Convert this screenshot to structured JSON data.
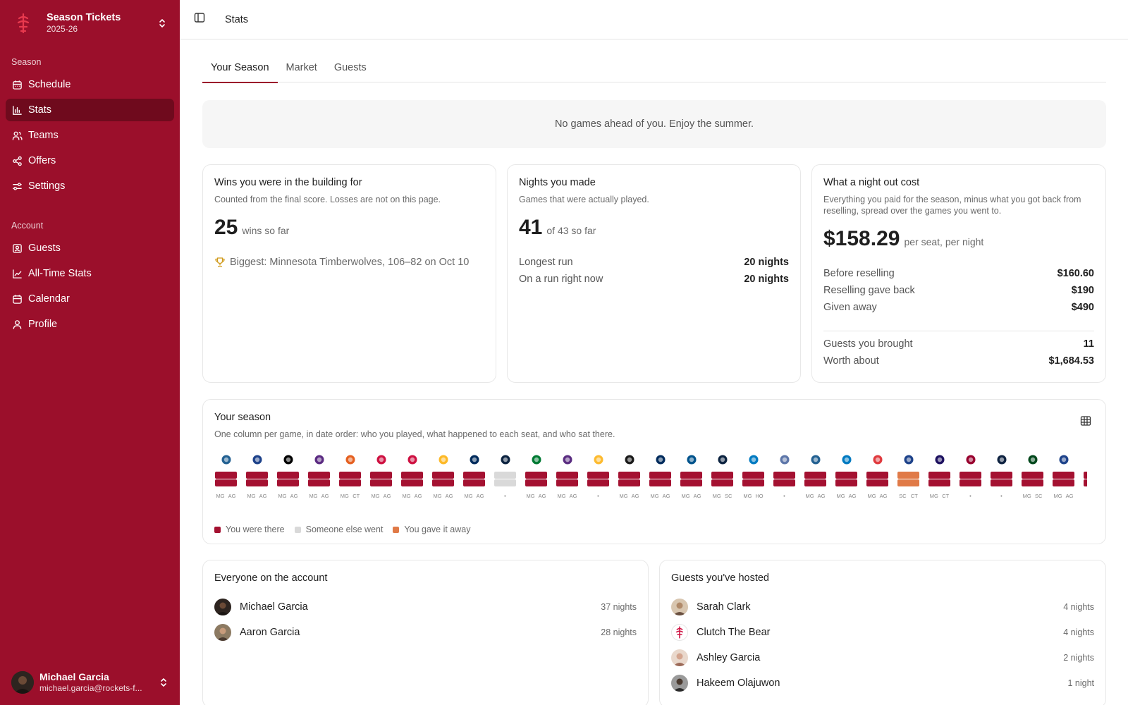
{
  "brand": {
    "title": "Season Tickets",
    "subtitle": "2025-26",
    "logo_icon": "rockets-logo-icon"
  },
  "sidebar": {
    "season_heading": "Season",
    "season_items": [
      {
        "label": "Schedule",
        "icon": "calendar-grid-icon"
      },
      {
        "label": "Stats",
        "icon": "bar-chart-icon",
        "active": true
      },
      {
        "label": "Teams",
        "icon": "users-icon"
      },
      {
        "label": "Offers",
        "icon": "share-icon"
      },
      {
        "label": "Settings",
        "icon": "sliders-icon"
      }
    ],
    "account_heading": "Account",
    "account_items": [
      {
        "label": "Guests",
        "icon": "contact-icon"
      },
      {
        "label": "All-Time Stats",
        "icon": "line-chart-icon"
      },
      {
        "label": "Calendar",
        "icon": "calendar-icon"
      },
      {
        "label": "Profile",
        "icon": "user-icon"
      }
    ]
  },
  "user": {
    "name": "Michael Garcia",
    "email": "michael.garcia@rockets-f..."
  },
  "topbar": {
    "breadcrumb": "Stats"
  },
  "tabs": [
    "Your Season",
    "Market",
    "Guests"
  ],
  "notice": "No games ahead of you. Enjoy the summer.",
  "wins_card": {
    "title": "Wins you were in the building for",
    "subtitle": "Counted from the final score. Losses are not on this page.",
    "value": "25",
    "value_suffix": "wins so far",
    "biggest": "Biggest: Minnesota Timberwolves, 106–82 on Oct 10"
  },
  "nights_card": {
    "title": "Nights you made",
    "subtitle": "Games that were actually played.",
    "value": "41",
    "value_suffix": "of 43 so far",
    "rows": [
      {
        "label": "Longest run",
        "value": "20 nights"
      },
      {
        "label": "On a run right now",
        "value": "20 nights"
      }
    ]
  },
  "cost_card": {
    "title": "What a night out cost",
    "subtitle": "Everything you paid for the season, minus what you got back from reselling, spread over the games you went to.",
    "value": "$158.29",
    "value_suffix": "per seat, per night",
    "rows": [
      {
        "label": "Before reselling",
        "value": "$160.60"
      },
      {
        "label": "Reselling gave back",
        "value": "$190"
      },
      {
        "label": "Given away",
        "value": "$490"
      }
    ],
    "rows2": [
      {
        "label": "Guests you brought",
        "value": "11"
      },
      {
        "label": "Worth about",
        "value": "$1,684.53"
      }
    ]
  },
  "season_strip": {
    "title": "Your season",
    "subtitle": "One column per game, in date order: who you played, what happened to each seat, and who sat there.",
    "legend": [
      {
        "label": "You were there",
        "color": "#a41131"
      },
      {
        "label": "Someone else went",
        "color": "#d9d9d9"
      },
      {
        "label": "You gave it away",
        "color": "#e07a47"
      }
    ],
    "games": [
      {
        "team_icon": "timberwolves-icon",
        "logo_color": "#236192",
        "seat1": "there",
        "seat2": "there",
        "seat1_initials": "MG",
        "seat2_initials": "AG"
      },
      {
        "team_icon": "clippers-icon",
        "logo_color": "#1d428a",
        "seat1": "there",
        "seat2": "there",
        "seat1_initials": "MG",
        "seat2_initials": "AG"
      },
      {
        "team_icon": "nets-icon",
        "logo_color": "#000000",
        "seat1": "there",
        "seat2": "there",
        "seat1_initials": "MG",
        "seat2_initials": "AG"
      },
      {
        "team_icon": "jazz-icon",
        "logo_color": "#5b2b82",
        "seat1": "there",
        "seat2": "there",
        "seat1_initials": "MG",
        "seat2_initials": "AG"
      },
      {
        "team_icon": "suns-icon",
        "logo_color": "#e56020",
        "seat1": "there",
        "seat2": "there",
        "seat1_initials": "MG",
        "seat2_initials": "CT"
      },
      {
        "team_icon": "raptors-icon",
        "logo_color": "#ce1141",
        "seat1": "there",
        "seat2": "there",
        "seat1_initials": "MG",
        "seat2_initials": "AG"
      },
      {
        "team_icon": "bulls-icon",
        "logo_color": "#ce1141",
        "seat1": "there",
        "seat2": "there",
        "seat1_initials": "MG",
        "seat2_initials": "AG"
      },
      {
        "team_icon": "lakers-icon",
        "logo_color": "#fdb927",
        "seat1": "there",
        "seat2": "there",
        "seat1_initials": "MG",
        "seat2_initials": "AG"
      },
      {
        "team_icon": "wizards-icon",
        "logo_color": "#002b5c",
        "seat1": "there",
        "seat2": "there",
        "seat1_initials": "MG",
        "seat2_initials": "AG"
      },
      {
        "team_icon": "pelicans-icon",
        "logo_color": "#0c2340",
        "seat1": "other",
        "seat2": "other",
        "seat1_initials": "•",
        "seat2_initials": ""
      },
      {
        "team_icon": "celtics-icon",
        "logo_color": "#007a33",
        "seat1": "there",
        "seat2": "there",
        "seat1_initials": "MG",
        "seat2_initials": "AG"
      },
      {
        "team_icon": "kings-icon",
        "logo_color": "#5a2d81",
        "seat1": "there",
        "seat2": "there",
        "seat1_initials": "MG",
        "seat2_initials": "AG"
      },
      {
        "team_icon": "pacers-icon",
        "logo_color": "#fdbb30",
        "seat1": "there",
        "seat2": "there",
        "seat1_initials": "•",
        "seat2_initials": ""
      },
      {
        "team_icon": "spurs-icon",
        "logo_color": "#1a1a1a",
        "seat1": "there",
        "seat2": "there",
        "seat1_initials": "MG",
        "seat2_initials": "AG"
      },
      {
        "team_icon": "wizards-icon",
        "logo_color": "#002b5c",
        "seat1": "there",
        "seat2": "there",
        "seat1_initials": "MG",
        "seat2_initials": "AG"
      },
      {
        "team_icon": "mavericks-icon",
        "logo_color": "#00538c",
        "seat1": "there",
        "seat2": "there",
        "seat1_initials": "MG",
        "seat2_initials": "AG"
      },
      {
        "team_icon": "pelicans-icon",
        "logo_color": "#0c2340",
        "seat1": "there",
        "seat2": "there",
        "seat1_initials": "MG",
        "seat2_initials": "SC"
      },
      {
        "team_icon": "thunder-icon",
        "logo_color": "#007ac1",
        "seat1": "there",
        "seat2": "there",
        "seat1_initials": "MG",
        "seat2_initials": "HO"
      },
      {
        "team_icon": "grizzlies-icon",
        "logo_color": "#5d76a9",
        "seat1": "there",
        "seat2": "there",
        "seat1_initials": "•",
        "seat2_initials": ""
      },
      {
        "team_icon": "timberwolves-icon",
        "logo_color": "#236192",
        "seat1": "there",
        "seat2": "there",
        "seat1_initials": "MG",
        "seat2_initials": "AG"
      },
      {
        "team_icon": "thunder-icon",
        "logo_color": "#007ac1",
        "seat1": "there",
        "seat2": "there",
        "seat1_initials": "MG",
        "seat2_initials": "AG"
      },
      {
        "team_icon": "hawks-icon",
        "logo_color": "#e03a3e",
        "seat1": "there",
        "seat2": "there",
        "seat1_initials": "MG",
        "seat2_initials": "AG"
      },
      {
        "team_icon": "warriors-icon",
        "logo_color": "#1d428a",
        "seat1": "gave",
        "seat2": "gave",
        "seat1_initials": "SC",
        "seat2_initials": "CT"
      },
      {
        "team_icon": "hornets-icon",
        "logo_color": "#1d1160",
        "seat1": "there",
        "seat2": "there",
        "seat1_initials": "MG",
        "seat2_initials": "CT"
      },
      {
        "team_icon": "heat-icon",
        "logo_color": "#98002e",
        "seat1": "there",
        "seat2": "there",
        "seat1_initials": "•",
        "seat2_initials": ""
      },
      {
        "team_icon": "nuggets-icon",
        "logo_color": "#0e2240",
        "seat1": "there",
        "seat2": "there",
        "seat1_initials": "•",
        "seat2_initials": ""
      },
      {
        "team_icon": "bucks-icon",
        "logo_color": "#00471b",
        "seat1": "there",
        "seat2": "there",
        "seat1_initials": "MG",
        "seat2_initials": "SC"
      },
      {
        "team_icon": "clippers-icon",
        "logo_color": "#1d428a",
        "seat1": "there",
        "seat2": "there",
        "seat1_initials": "MG",
        "seat2_initials": "AG"
      },
      {
        "team_icon": "rockets-icon",
        "logo_color": "#ce1141",
        "seat1": "there",
        "seat2": "there",
        "seat1_initials": "MG",
        "seat2_initials": ""
      }
    ]
  },
  "account_people": {
    "title": "Everyone on the account",
    "people": [
      {
        "name": "Michael Garcia",
        "nights": "37 nights",
        "avatar_color": "#3b2b22"
      },
      {
        "name": "Aaron Garcia",
        "nights": "28 nights",
        "avatar_color": "#5a4030"
      }
    ]
  },
  "guests": {
    "title": "Guests you've hosted",
    "people": [
      {
        "name": "Sarah Clark",
        "nights": "4 nights",
        "avatar_color": "#b08a6a"
      },
      {
        "name": "Clutch The Bear",
        "nights": "4 nights",
        "avatar_color": "#f4e6e8"
      },
      {
        "name": "Ashley Garcia",
        "nights": "2 nights",
        "avatar_color": "#c08a7a"
      },
      {
        "name": "Hakeem Olajuwon",
        "nights": "1 night",
        "avatar_color": "#4a3a30"
      }
    ]
  },
  "colors": {
    "sidebar_bg": "#9b0f2b",
    "accent": "#a41131",
    "other": "#d9d9d9",
    "gave": "#e07a47"
  }
}
